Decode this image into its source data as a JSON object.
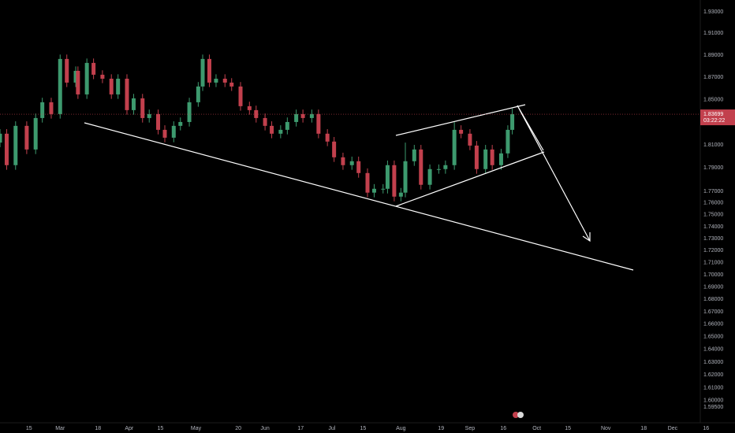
{
  "chart_data": {
    "type": "candlestick",
    "x": [
      33,
      36,
      40,
      45,
      49,
      52,
      56,
      60,
      63,
      67,
      68,
      72,
      75,
      79,
      83,
      86,
      90,
      93,
      97,
      100,
      104,
      107,
      111,
      114,
      118,
      122,
      124,
      127,
      130,
      134,
      137,
      141,
      145,
      148,
      152,
      155,
      159,
      162,
      166,
      169,
      173,
      176,
      180,
      183,
      187,
      191,
      194,
      198,
      201,
      205,
      207,
      210,
      213,
      215,
      219,
      222,
      226,
      230,
      233,
      237,
      240,
      244,
      247,
      251,
      254,
      258,
      261,
      263
    ],
    "open": [
      1.812,
      1.8198,
      1.7924,
      1.8267,
      1.806,
      1.8336,
      1.8476,
      1.8371,
      1.8866,
      1.8652,
      1.8758,
      1.8546,
      1.883,
      1.8723,
      1.8687,
      1.8546,
      1.8687,
      1.8406,
      1.8511,
      1.8336,
      1.8371,
      1.8232,
      1.8163,
      1.8267,
      1.8301,
      1.8476,
      1.8617,
      1.8866,
      1.8652,
      1.8687,
      1.8652,
      1.8617,
      1.8441,
      1.8406,
      1.8336,
      1.8267,
      1.8198,
      1.8232,
      1.8301,
      1.8371,
      1.8336,
      1.8371,
      1.8198,
      1.8129,
      1.7992,
      1.7924,
      1.7958,
      1.7856,
      1.7688,
      1.7721,
      1.7721,
      1.7924,
      1.7654,
      1.7688,
      1.7958,
      1.806,
      1.7755,
      1.789,
      1.789,
      1.7924,
      1.8232,
      1.8198,
      1.8094,
      1.789,
      1.806,
      1.7924,
      1.8026,
      1.8232
    ],
    "high": [
      1.8238,
      1.8238,
      1.8307,
      1.8307,
      1.8376,
      1.8516,
      1.8516,
      1.8906,
      1.8906,
      1.8798,
      1.8798,
      1.887,
      1.887,
      1.8763,
      1.8727,
      1.8727,
      1.8727,
      1.8551,
      1.8551,
      1.8411,
      1.8411,
      1.8272,
      1.8307,
      1.8341,
      1.8516,
      1.8657,
      1.8906,
      1.8906,
      1.8727,
      1.8727,
      1.8692,
      1.8657,
      1.8481,
      1.8446,
      1.8376,
      1.8307,
      1.8272,
      1.8341,
      1.8411,
      1.8411,
      1.8411,
      1.8411,
      1.8238,
      1.8169,
      1.8032,
      1.7998,
      1.7998,
      1.7896,
      1.7761,
      1.7761,
      1.7964,
      1.7964,
      1.7728,
      1.812,
      1.81,
      1.81,
      1.793,
      1.793,
      1.7964,
      1.83,
      1.8272,
      1.8238,
      1.8134,
      1.81,
      1.81,
      1.8066,
      1.8272,
      1.842
    ],
    "low": [
      1.808,
      1.7884,
      1.7884,
      1.802,
      1.802,
      1.8296,
      1.8331,
      1.8331,
      1.8612,
      1.8612,
      1.8506,
      1.8506,
      1.8683,
      1.8647,
      1.8506,
      1.8506,
      1.8366,
      1.8366,
      1.8296,
      1.8296,
      1.8192,
      1.8123,
      1.8123,
      1.8227,
      1.8261,
      1.8436,
      1.8577,
      1.8612,
      1.8612,
      1.8612,
      1.8577,
      1.8401,
      1.8366,
      1.8296,
      1.8227,
      1.8158,
      1.8158,
      1.8192,
      1.8261,
      1.8296,
      1.8296,
      1.8158,
      1.8089,
      1.7952,
      1.7884,
      1.7884,
      1.7816,
      1.7648,
      1.7648,
      1.7681,
      1.7681,
      1.7614,
      1.7614,
      1.7648,
      1.7918,
      1.7715,
      1.7715,
      1.785,
      1.785,
      1.7884,
      1.8158,
      1.8054,
      1.785,
      1.785,
      1.7884,
      1.7884,
      1.7986,
      1.8192
    ],
    "close": [
      1.8198,
      1.7924,
      1.8267,
      1.806,
      1.8336,
      1.8476,
      1.8371,
      1.8866,
      1.8652,
      1.8758,
      1.8546,
      1.883,
      1.8723,
      1.8687,
      1.8546,
      1.8687,
      1.8406,
      1.8511,
      1.8336,
      1.8371,
      1.8232,
      1.8163,
      1.8267,
      1.8301,
      1.8476,
      1.8617,
      1.8866,
      1.8652,
      1.8687,
      1.8652,
      1.8617,
      1.8441,
      1.8406,
      1.8336,
      1.8267,
      1.8198,
      1.8232,
      1.8301,
      1.8371,
      1.8336,
      1.8371,
      1.8198,
      1.8129,
      1.7992,
      1.7924,
      1.7958,
      1.7856,
      1.7688,
      1.7721,
      1.7721,
      1.7924,
      1.7654,
      1.7688,
      1.7958,
      1.806,
      1.7755,
      1.789,
      1.789,
      1.7924,
      1.8232,
      1.8198,
      1.8094,
      1.789,
      1.806,
      1.7924,
      1.8026,
      1.8232,
      1.837
    ],
    "up_color": "#3d9a6e",
    "down_color": "#c2404d",
    "xlim": [
      33,
      363
    ],
    "xticks": [
      {
        "value": 46,
        "label": "15"
      },
      {
        "value": 60,
        "label": "Mar"
      },
      {
        "value": 77,
        "label": "18"
      },
      {
        "value": 91,
        "label": "Apr"
      },
      {
        "value": 105,
        "label": "15"
      },
      {
        "value": 121,
        "label": "May"
      },
      {
        "value": 140,
        "label": "20"
      },
      {
        "value": 152,
        "label": "Jun"
      },
      {
        "value": 168,
        "label": "17"
      },
      {
        "value": 182,
        "label": "Jul"
      },
      {
        "value": 196,
        "label": "15"
      },
      {
        "value": 213,
        "label": "Aug"
      },
      {
        "value": 231,
        "label": "19"
      },
      {
        "value": 244,
        "label": "Sep"
      },
      {
        "value": 259,
        "label": "16"
      },
      {
        "value": 274,
        "label": "Oct"
      },
      {
        "value": 288,
        "label": "15"
      },
      {
        "value": 305,
        "label": "Nov"
      },
      {
        "value": 322,
        "label": "18"
      },
      {
        "value": 335,
        "label": "Dec"
      },
      {
        "value": 350,
        "label": "16"
      }
    ],
    "ylim": [
      1.583,
      1.941
    ],
    "log_scale": true,
    "grid": false,
    "yticks": [
      {
        "value": 1.93,
        "label": "1.93000"
      },
      {
        "value": 1.91,
        "label": "1.91000"
      },
      {
        "value": 1.89,
        "label": "1.89000"
      },
      {
        "value": 1.87,
        "label": "1.87000"
      },
      {
        "value": 1.85,
        "label": "1.85000"
      },
      {
        "value": 1.81,
        "label": "1.81000"
      },
      {
        "value": 1.79,
        "label": "1.79000"
      },
      {
        "value": 1.77,
        "label": "1.77000"
      },
      {
        "value": 1.76,
        "label": "1.76000"
      },
      {
        "value": 1.75,
        "label": "1.75000"
      },
      {
        "value": 1.74,
        "label": "1.74000"
      },
      {
        "value": 1.73,
        "label": "1.73000"
      },
      {
        "value": 1.72,
        "label": "1.72000"
      },
      {
        "value": 1.71,
        "label": "1.71000"
      },
      {
        "value": 1.7,
        "label": "1.70000"
      },
      {
        "value": 1.69,
        "label": "1.69000"
      },
      {
        "value": 1.68,
        "label": "1.68000"
      },
      {
        "value": 1.67,
        "label": "1.67000"
      },
      {
        "value": 1.66,
        "label": "1.66000"
      },
      {
        "value": 1.65,
        "label": "1.65000"
      },
      {
        "value": 1.64,
        "label": "1.64000"
      },
      {
        "value": 1.63,
        "label": "1.63000"
      },
      {
        "value": 1.62,
        "label": "1.62000"
      },
      {
        "value": 1.61,
        "label": "1.61000"
      },
      {
        "value": 1.6,
        "label": "1.60000"
      },
      {
        "value": 1.595,
        "label": "1.59500"
      }
    ],
    "last_price": {
      "value": 1.83699,
      "label": "1.83699"
    },
    "last_price_color": "#c2404d",
    "countdown": "03:22:22"
  }
}
